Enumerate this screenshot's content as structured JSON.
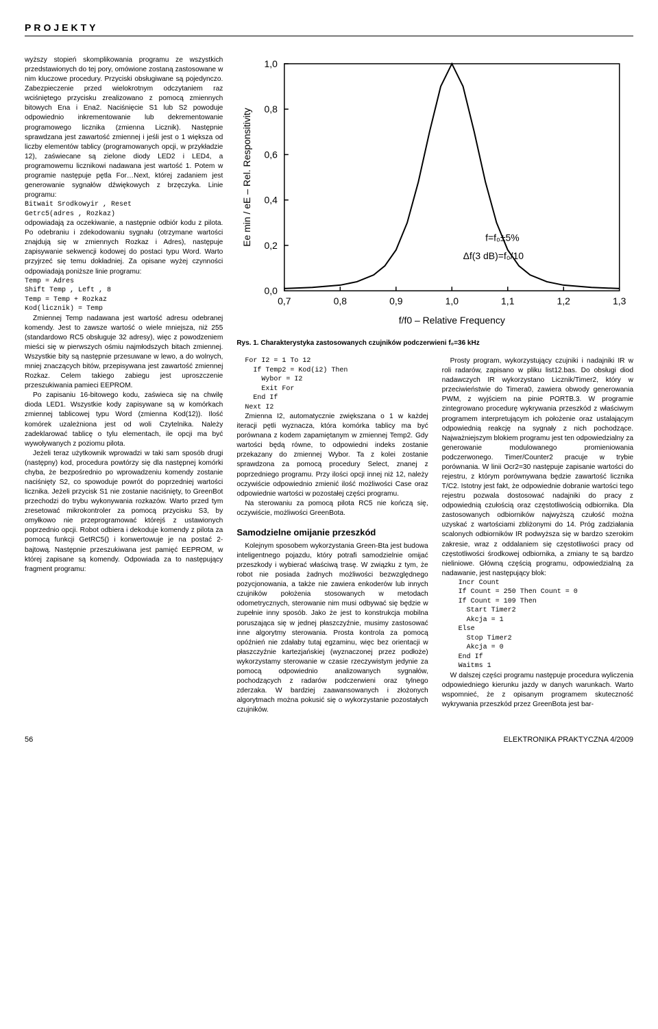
{
  "header": "PROJEKTY",
  "col1": {
    "p1": "wyższy stopień skomplikowania programu ze wszystkich przedstawionych do tej pory, omówione zostaną zastosowane w nim kluczowe procedury. Przyciski obsługiwane są pojedynczo. Zabezpieczenie przed wielokrotnym odczytaniem raz wciśniętego przycisku zrealizowano z pomocą zmiennych bitowych Ena i Ena2. Naciśnięcie S1 lub S2 powoduje odpowiednio inkrementowanie lub dekrementowanie programowego licznika (zmienna Licznik). Następnie sprawdzana jest zawartość zmiennej i jeśli jest o 1 większa od liczby elementów tablicy (programowanych opcji, w przykładzie 12), zaświecane są zielone diody LED2 i LED4, a programowemu licznikowi nadawana jest wartość 1. Potem w programie następuje pętla For…Next, której zadaniem jest generowanie sygnałów dźwiękowych z brzęczyka. Linie programu:",
    "code1": "Bitwait Srodkowyir , Reset\nGetrc5(adres , Rozkaz)",
    "p2": "odpowiadają za oczekiwanie, a następnie odbiór kodu z pilota. Po odebraniu i zdekodowaniu sygnału (otrzymane wartości znajdują się w zmiennych Rozkaz i Adres), następuje zapisywanie sekwencji kodowej do postaci typu Word. Warto przyjrzeć się temu dokładniej. Za opisane wyżej czynności odpowiadają poniższe linie programu:",
    "code2": "Temp = Adres\nShift Temp , Left , 8\nTemp = Temp + Rozkaz\nKod(licznik) = Temp",
    "p3": "Zmiennej Temp nadawana jest wartość adresu odebranej komendy. Jest to zawsze wartość o wiele mniejsza, niż 255 (standardowo RC5 obsługuje 32 adresy), więc z powodzeniem mieści się w pierwszych ośmiu najmłodszych bitach zmiennej. Wszystkie bity są następnie przesuwane w lewo, a do wolnych, mniej znaczących bitów, przepisywana jest zawartość zmiennej Rozkaz. Celem takiego zabiegu jest uproszczenie przeszukiwania pamieci EEPROM.",
    "p4": "Po zapisaniu 16-bitowego kodu, zaświeca się na chwilę dioda LED1. Wszystkie kody zapisywane są w komórkach zmiennej tablicowej typu Word (zmienna Kod(12)). Ilość komórek uzależniona jest od woli Czytelnika. Należy zadeklarować tablicę o tylu elementach, ile opcji ma być wywoływanych z poziomu pilota.",
    "p5": "Jeżeli teraz użytkownik wprowadzi w taki sam sposób drugi (następny) kod, procedura powtórzy się dla następnej komórki chyba, że bezpośrednio po wprowadzeniu komendy zostanie naciśnięty S2, co spowoduje powrót do poprzedniej wartości licznika. Jeżeli przycisk S1 nie zostanie naciśnięty, to GreenBot przechodzi do trybu wykonywania rozkazów. Warto przed tym zresetować mikrokontroler za pomocą przycisku S3, by omyłkowo nie przeprogramować którejś z ustawionych poprzednio opcji. Robot odbiera i dekoduje komendy z pilota za pomocą funkcji GetRC5() i konwertowuje je na postać 2-bajtową. Następnie przeszukiwana jest pamięć EEPROM, w której zapisane są komendy. Odpowiada za to następujący fragment programu:"
  },
  "chart": {
    "type": "line",
    "title_y": "Ee min / eE – Rel. Responsitivity",
    "title_x": "f/f0 – Relative Frequency",
    "annotation1": "f=f₀±5%",
    "annotation2": "Δf(3 dB)=f₀/10",
    "xticks": [
      "0,7",
      "0,8",
      "0,9",
      "1,0",
      "1,1",
      "1,2",
      "1,3"
    ],
    "yticks": [
      "0,0",
      "0,2",
      "0,4",
      "0,6",
      "0,8",
      "1,0"
    ],
    "xlim": [
      0.7,
      1.3
    ],
    "ylim": [
      0.0,
      1.0
    ],
    "background": "#ffffff",
    "grid_color": "none",
    "axis_color": "#000000",
    "line_color": "#000000",
    "line_width": 2,
    "tick_fontsize": 14,
    "label_fontsize": 14,
    "curve_points": [
      [
        0.7,
        0.01
      ],
      [
        0.75,
        0.015
      ],
      [
        0.8,
        0.025
      ],
      [
        0.83,
        0.04
      ],
      [
        0.86,
        0.07
      ],
      [
        0.88,
        0.11
      ],
      [
        0.9,
        0.18
      ],
      [
        0.92,
        0.3
      ],
      [
        0.94,
        0.48
      ],
      [
        0.96,
        0.7
      ],
      [
        0.98,
        0.9
      ],
      [
        1.0,
        1.0
      ],
      [
        1.02,
        0.9
      ],
      [
        1.04,
        0.7
      ],
      [
        1.06,
        0.48
      ],
      [
        1.08,
        0.3
      ],
      [
        1.1,
        0.18
      ],
      [
        1.12,
        0.11
      ],
      [
        1.14,
        0.07
      ],
      [
        1.17,
        0.04
      ],
      [
        1.2,
        0.025
      ],
      [
        1.25,
        0.015
      ],
      [
        1.3,
        0.01
      ]
    ]
  },
  "caption": "Rys. 1. Charakterystyka zastosowanych czujników podczerwieni f₀=36 kHz",
  "col2": {
    "code1": "For I2 = 1 To 12\n  If Temp2 = Kod(i2) Then\n    Wybor = I2\n    Exit For\n  End If\nNext I2",
    "p1": "Zmienna I2, automatycznie zwiększana o 1 w każdej iteracji pętli wyznacza, która komórka tablicy ma być porównana z kodem zapamiętanym w zmiennej Temp2. Gdy wartości będą równe, to odpowiedni indeks zostanie przekazany do zmiennej Wybor. Ta z kolei zostanie sprawdzona za pomocą procedury Select, znanej z poprzedniego programu. Przy ilości opcji innej niż 12, należy oczywiście odpowiednio zmienić ilość możliwości Case oraz odpowiednie wartości w pozostałej części programu.",
    "p2": "Na sterowaniu za pomocą pilota RC5 nie kończą się, oczywiście, możliwości GreenBota.",
    "subhead": "Samodzielne omijanie przeszkód",
    "p3": "Kolejnym sposobem wykorzystania Green-Bta jest budowa inteligentnego pojazdu, który potrafi samodzielnie omijać przeszkody i wybierać właściwą trasę. W związku z tym, że robot nie posiada żadnych możliwości bezwzględnego pozycjonowania, a także nie zawiera enkoderów lub innych czujników położenia stosowanych w metodach odometrycznych, sterowanie nim musi odbywać się będzie w zupełnie inny sposób. Jako że jest to konstrukcja mobilna poruszająca się w jednej płaszczyźnie, musimy zastosować inne algorytmy sterowania. Prosta kontrola za pomocą opóźnień nie zdałaby tutaj egzaminu, więc bez orientacji w płaszczyźnie kartezjańskiej (wyznaczonej przez podłoże) wykorzystamy sterowanie w czasie rzeczywistym jedynie za pomocą odpowiednio analizowanych sygnałów, pochodzących z radarów podczerwieni oraz tylnego zderzaka. W bardziej zaawansowanych i złożonych algorytmach można pokusić się o wykorzystanie pozostałych czujników."
  },
  "col3": {
    "p1": "Prosty program, wykorzystujący czujniki i nadajniki IR w roli radarów, zapisano w pliku list12.bas. Do obsługi diod nadawczych IR wykorzystano Licznik/Timer2, który w przeciwieństwie do Timera0, zawiera obwody generowania PWM, z wyjściem na pinie PORTB.3. W programie zintegrowano procedurę wykrywania przeszkód z właściwym programem interpretującym ich położenie oraz ustalającym odpowiednią reakcję na sygnały z nich pochodzące. Najważniejszym blokiem programu jest ten odpowiedzialny za generowanie modulowanego promieniowania podczerwonego. Timer/Counter2 pracuje w trybie porównania. W linii Ocr2=30 następuje zapisanie wartości do rejestru, z którym porównywana będzie zawartość licznika T/C2. Istotny jest fakt, że odpowiednie dobranie wartości tego rejestru pozwala dostosować nadajniki do pracy z odpowiednią czułością oraz częstotliwością odbiornika. Dla zastosowanych odbiorników najwyższą czułość można uzyskać z wartościami zbliżonymi do 14. Próg zadziałania scalonych odbiorników IR podwyższa się w bardzo szerokim zakresie, wraz z oddalaniem się częstotliwości pracy od częstotliwości środkowej odbiornika, a zmiany te są bardzo nieliniowe. Główną częścią programu, odpowiedzialną za nadawanie, jest następujący blok:",
    "code1": "  Incr Count\n  If Count = 250 Then Count = 0\n  If Count = 109 Then\n    Start Timer2\n    Akcja = 1\n  Else\n    Stop Timer2\n    Akcja = 0\n  End If\n  Waitms 1",
    "p2": "W dalszej części programu następuje procedura wyliczenia odpowiedniego kierunku jazdy w danych warunkach. Warto wspomnieć, że z opisanym programem skuteczność wykrywania przeszkód przez GreenBota jest bar-"
  },
  "footer": {
    "page": "56",
    "issue": "ELEKTRONIKA PRAKTYCZNA 4/2009"
  }
}
